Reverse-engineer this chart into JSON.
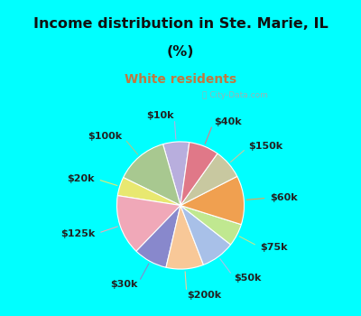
{
  "title_line1": "Income distribution in Ste. Marie, IL",
  "title_line2": "(%)",
  "subtitle": "White residents",
  "title_color": "#111111",
  "subtitle_color": "#c07840",
  "background_top": "#00ffff",
  "background_chart": "#e8f5ee",
  "watermark": "ⓘ City-Data.com",
  "labels": [
    "$10k",
    "$100k",
    "$20k",
    "$125k",
    "$30k",
    "$200k",
    "$50k",
    "$75k",
    "$60k",
    "$150k",
    "$40k"
  ],
  "values": [
    7,
    14,
    5,
    16,
    9,
    10,
    9,
    6,
    13,
    8,
    8
  ],
  "colors": [
    "#b8aedd",
    "#a8c890",
    "#e8e870",
    "#f0a8b8",
    "#8888cc",
    "#f8c898",
    "#a8c0e8",
    "#c0e890",
    "#f0a050",
    "#c8c8a0",
    "#e07888"
  ],
  "startangle": 82,
  "figsize": [
    4.0,
    3.5
  ],
  "dpi": 100
}
